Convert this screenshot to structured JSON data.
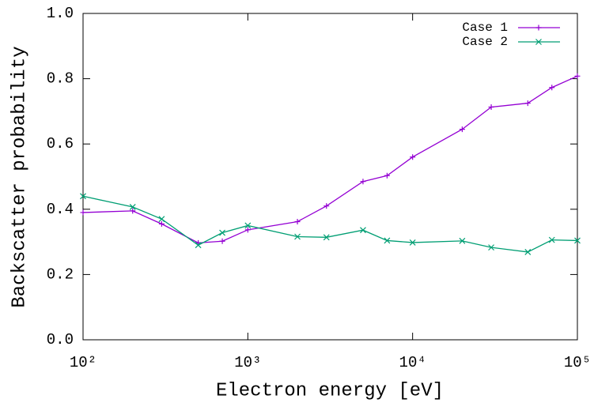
{
  "chart_data": {
    "type": "line",
    "xlabel": "Electron energy [eV]",
    "ylabel": "Backscatter probability",
    "x": [
      100,
      200,
      300,
      500,
      700,
      1000,
      2000,
      3000,
      5000,
      7000,
      10000,
      20000,
      30000,
      50000,
      70000,
      100000
    ],
    "series": [
      {
        "name": "Case 1",
        "color": "#9400d3",
        "marker": "plus",
        "values": [
          0.39,
          0.395,
          0.355,
          0.297,
          0.302,
          0.337,
          0.362,
          0.41,
          0.485,
          0.503,
          0.56,
          0.645,
          0.713,
          0.725,
          0.773,
          0.808
        ]
      },
      {
        "name": "Case 2",
        "color": "#009e73",
        "marker": "cross",
        "values": [
          0.44,
          0.407,
          0.37,
          0.29,
          0.328,
          0.35,
          0.316,
          0.314,
          0.336,
          0.304,
          0.298,
          0.303,
          0.283,
          0.269,
          0.306,
          0.304
        ]
      }
    ],
    "xscale": "log",
    "xlim": [
      100,
      100000
    ],
    "xticks": [
      {
        "value": 100,
        "label": "10²"
      },
      {
        "value": 1000,
        "label": "10³"
      },
      {
        "value": 10000,
        "label": "10⁴"
      },
      {
        "value": 100000,
        "label": "10⁵"
      }
    ],
    "ylim": [
      0,
      1
    ],
    "yticks": [
      {
        "value": 0,
        "label": "0.0"
      },
      0.2,
      0.4,
      0.6,
      0.8,
      {
        "value": 1,
        "label": "1.0"
      }
    ],
    "grid": false,
    "legend": "top-right"
  }
}
